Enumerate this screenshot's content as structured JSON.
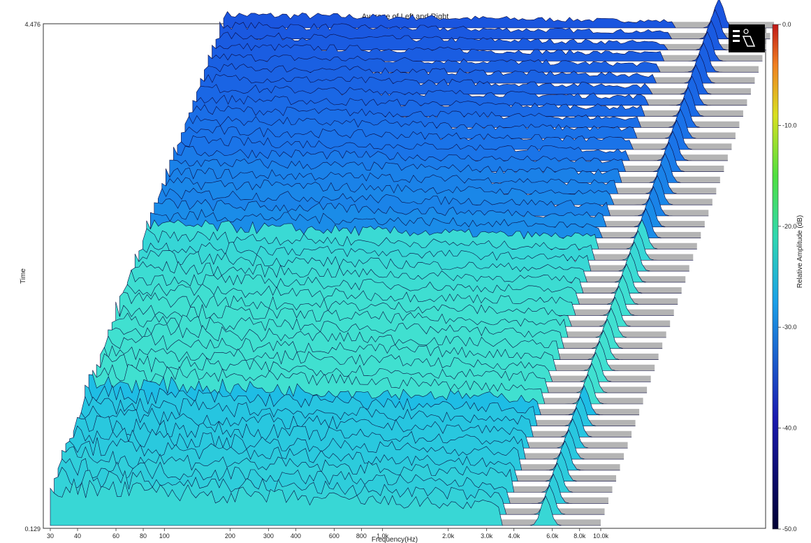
{
  "chart_data": {
    "type": "waterfall",
    "title": "Average of Left and Right",
    "xlabel": "Frequency(Hz)",
    "ylabel": "Time",
    "x_scale": "log",
    "x_tick_labels": [
      "30",
      "40",
      "60",
      "80",
      "100",
      "200",
      "300",
      "400",
      "600",
      "800",
      "1.0k",
      "2.0k",
      "3.0k",
      "4.0k",
      "6.0k",
      "8.0k",
      "10.0k"
    ],
    "x_ticks": [
      30,
      40,
      60,
      80,
      100,
      200,
      300,
      400,
      600,
      800,
      1000,
      2000,
      3000,
      4000,
      6000,
      8000,
      10000
    ],
    "xlim": [
      30,
      10000
    ],
    "y_tick_labels": [
      "4.476",
      "0.129"
    ],
    "ylim": [
      0.129,
      4.476
    ],
    "slices": 46,
    "colorbar": {
      "label": "Relative Amplitude (dB)",
      "range": [
        -50,
        0
      ],
      "tick_labels": [
        "0.0",
        "-10.0",
        "-20.0",
        "-30.0",
        "-40.0",
        "-50.0"
      ],
      "colors": [
        "#000033",
        "#0a0a8c",
        "#1a3fd6",
        "#1aa0e8",
        "#22d4a6",
        "#48e048",
        "#c9e020",
        "#f0a020",
        "#d83018",
        "#b01010"
      ]
    },
    "legend_icon": "waterfall-view-icon",
    "background_band_colors": [
      "#b4b4b4",
      "#ffffff"
    ]
  }
}
